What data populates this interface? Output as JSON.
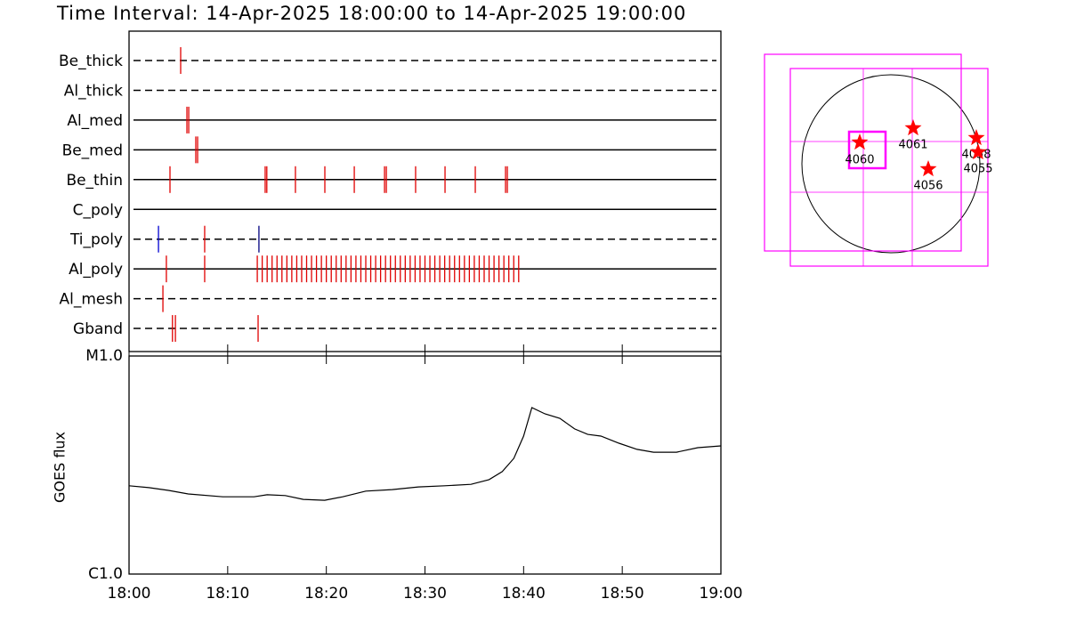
{
  "chart_data": [
    {
      "type": "timeline",
      "title": "Time Interval: 14-Apr-2025 18:00:00 to 14-Apr-2025 19:00:00",
      "rows": [
        {
          "name": "Be_thick",
          "style": "dashed",
          "color": "#e00000",
          "times": [
            "18:05:14"
          ]
        },
        {
          "name": "Al_thick",
          "style": "dashed",
          "color": "#e00000",
          "times": []
        },
        {
          "name": "Al_med",
          "style": "solid",
          "color": "#e00000",
          "times": [
            "18:05:52",
            "18:06:03"
          ]
        },
        {
          "name": "Be_med",
          "style": "solid",
          "color": "#e00000",
          "times": [
            "18:06:46",
            "18:06:57"
          ]
        },
        {
          "name": "Be_thin",
          "style": "solid",
          "color": "#e00000",
          "times": [
            "18:04:09",
            "18:13:48",
            "18:13:58",
            "18:16:52",
            "18:19:51",
            "18:22:50",
            "18:25:54",
            "18:26:05",
            "18:29:03",
            "18:32:02",
            "18:35:06",
            "18:38:10",
            "18:38:21"
          ]
        },
        {
          "name": "C_poly",
          "style": "solid",
          "color": "#e00000",
          "times": []
        },
        {
          "name": "Ti_poly",
          "style": "dashed",
          "color": "#e00000",
          "times": [
            "18:02:59",
            "18:07:40",
            "18:13:10"
          ],
          "colors": [
            "#0000d0",
            "#e00000",
            "#000080"
          ]
        },
        {
          "name": "Al_poly",
          "style": "solid",
          "color": "#e00000",
          "times": [
            "18:03:47",
            "18:07:40",
            "18:13:00",
            "18:13:30",
            "18:14:00",
            "18:14:30",
            "18:15:00",
            "18:15:30",
            "18:16:00",
            "18:16:30",
            "18:17:00",
            "18:17:30",
            "18:18:00",
            "18:18:30",
            "18:19:00",
            "18:19:30",
            "18:20:00",
            "18:20:30",
            "18:21:00",
            "18:21:30",
            "18:22:00",
            "18:22:30",
            "18:23:00",
            "18:23:30",
            "18:24:00",
            "18:24:30",
            "18:25:00",
            "18:25:30",
            "18:26:00",
            "18:26:30",
            "18:27:00",
            "18:27:30",
            "18:28:00",
            "18:28:30",
            "18:29:00",
            "18:29:30",
            "18:30:00",
            "18:30:30",
            "18:31:00",
            "18:31:30",
            "18:32:00",
            "18:32:30",
            "18:33:00",
            "18:33:30",
            "18:34:00",
            "18:34:30",
            "18:35:00",
            "18:35:30",
            "18:36:00",
            "18:36:30",
            "18:37:00",
            "18:37:30",
            "18:38:00",
            "18:38:30",
            "18:39:00",
            "18:39:30"
          ]
        },
        {
          "name": "Al_mesh",
          "style": "dashed",
          "color": "#e00000",
          "times": [
            "18:03:26"
          ]
        },
        {
          "name": "Gband",
          "style": "dashed",
          "color": "#e00000",
          "times": [
            "18:04:24",
            "18:04:42",
            "18:13:05"
          ]
        }
      ]
    },
    {
      "type": "line",
      "ylabel": "GOES flux",
      "color": "#000000",
      "log": true,
      "x": [
        "18:00:00",
        "18:02:00",
        "18:04:00",
        "18:06:00",
        "18:09:30",
        "18:12:40",
        "18:14:00",
        "18:15:50",
        "18:17:40",
        "18:19:50",
        "18:21:40",
        "18:24:00",
        "18:26:40",
        "18:29:20",
        "18:32:00",
        "18:34:40",
        "18:36:30",
        "18:37:50",
        "18:39:00",
        "18:40:00",
        "18:40:50",
        "18:42:10",
        "18:43:40",
        "18:45:10",
        "18:46:30",
        "18:47:50",
        "18:49:40",
        "18:51:30",
        "18:53:10",
        "18:55:30",
        "18:57:40",
        "19:00:00"
      ],
      "values": [
        2.54e-06,
        2.49e-06,
        2.42e-06,
        2.33e-06,
        2.26e-06,
        2.26e-06,
        2.31e-06,
        2.29e-06,
        2.2e-06,
        2.18e-06,
        2.26e-06,
        2.4e-06,
        2.44e-06,
        2.51e-06,
        2.54e-06,
        2.58e-06,
        2.71e-06,
        2.95e-06,
        3.39e-06,
        4.29e-06,
        5.8e-06,
        5.43e-06,
        5.18e-06,
        4.63e-06,
        4.37e-06,
        4.29e-06,
        3.98e-06,
        3.73e-06,
        3.62e-06,
        3.62e-06,
        3.8e-06,
        3.87e-06
      ],
      "xlim": [
        "18:00",
        "19:00"
      ],
      "xticks": [
        "18:00",
        "18:10",
        "18:20",
        "18:30",
        "18:40",
        "18:50",
        "19:00"
      ],
      "ylim": [
        1e-06,
        1e-05
      ],
      "yticks": [
        {
          "value": 1e-06,
          "label": "C1.0"
        },
        {
          "value": 1e-05,
          "label": "M1.0"
        }
      ]
    },
    {
      "type": "map",
      "box_color": "#ff00ff",
      "star_color": "#ff0000",
      "regions": [
        "4060",
        "4061",
        "4058",
        "4055",
        "4056"
      ]
    }
  ]
}
